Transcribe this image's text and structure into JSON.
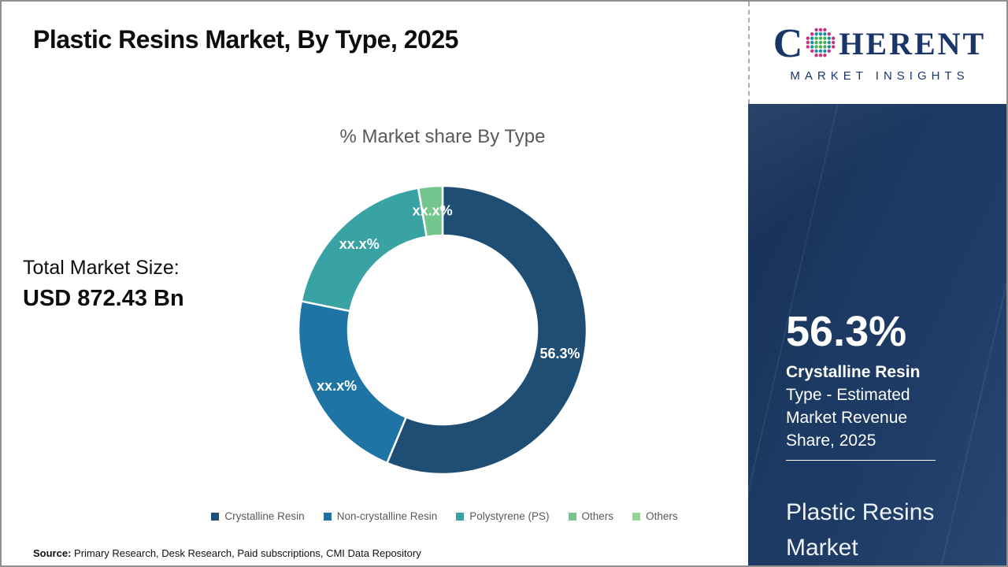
{
  "header": {
    "title": "Plastic Resins Market, By Type, 2025"
  },
  "logo": {
    "word_start": "C",
    "word_end": "HERENT",
    "subtitle": "MARKET INSIGHTS",
    "navy": "#1a3668",
    "dot_colors": {
      "inner": "#4ab04f",
      "middle": "#1f8fa8",
      "outer": "#c2347f"
    }
  },
  "total_market": {
    "label": "Total Market Size:",
    "value": "USD 872.43 Bn"
  },
  "chart_data": {
    "type": "pie",
    "donut": true,
    "title": "% Market share By Type",
    "legend_position": "bottom",
    "start_angle_deg": 0,
    "segments": [
      {
        "name": "Crystalline Resin",
        "value": 56.3,
        "label": "56.3%",
        "color": "#1f4e74"
      },
      {
        "name": "Non-crystalline Resin",
        "value": 21.9,
        "label": "xx.x%",
        "color": "#1e74a4"
      },
      {
        "name": "Polystyrene (PS)",
        "value": 19.1,
        "label": "xx.x%",
        "color": "#39a3a3"
      },
      {
        "name": "Others",
        "value": 2.7,
        "label": "xx.x%",
        "color": "#74c58e"
      },
      {
        "name": "Others",
        "value": 0,
        "label": "",
        "color": "#98d295"
      }
    ]
  },
  "sidebar": {
    "stat_value": "56.3%",
    "stat_label_bold": "Crystalline Resin",
    "stat_label_rest": " Type - Estimated Market Revenue Share, 2025",
    "product_title": "Plastic Resins Market",
    "background_color": "#1c3a63"
  },
  "source": {
    "label": "Source:",
    "text": " Primary Research, Desk Research, Paid subscriptions, CMI Data Repository"
  }
}
